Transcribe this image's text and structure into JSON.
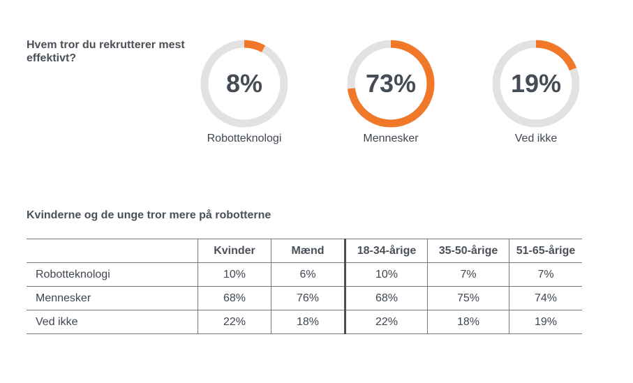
{
  "chart_data": [
    {
      "type": "pie",
      "title": "Hvem tror du rekrutterer mest effektivt?",
      "slices": [
        {
          "label": "Robotteknologi",
          "value": 8,
          "display": "8%"
        },
        {
          "label": "Mennesker",
          "value": 73,
          "display": "73%"
        },
        {
          "label": "Ved ikke",
          "value": 19,
          "display": "19%"
        }
      ],
      "colors": {
        "fill": "#f07828",
        "track": "#e2e2e2"
      }
    },
    {
      "type": "table",
      "title": "Kvinderne og de unge tror mere på robotterne",
      "columns": [
        "Kvinder",
        "Mænd",
        "18-34-årige",
        "35-50-årige",
        "51-65-årige"
      ],
      "rows": [
        {
          "label": "Robotteknologi",
          "values": [
            "10%",
            "6%",
            "10%",
            "7%",
            "7%"
          ]
        },
        {
          "label": "Mennesker",
          "values": [
            "68%",
            "76%",
            "68%",
            "75%",
            "74%"
          ]
        },
        {
          "label": "Ved ikke",
          "values": [
            "22%",
            "18%",
            "22%",
            "18%",
            "19%"
          ]
        }
      ]
    }
  ]
}
